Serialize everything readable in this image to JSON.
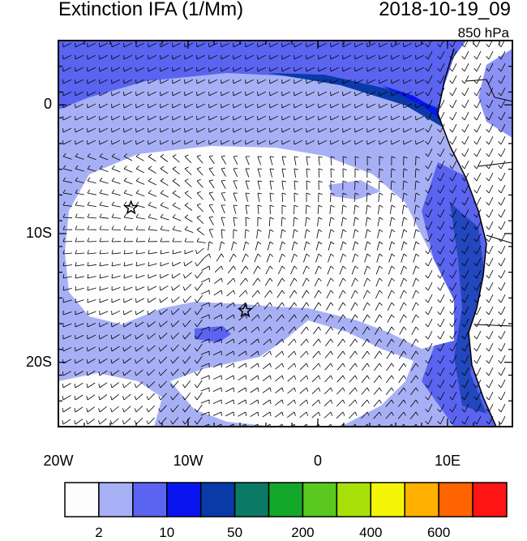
{
  "title_left": "Extinction IFA (1/Mm)",
  "title_right": "2018-10-19_09",
  "level": "850 hPa",
  "lat_ticks": [
    {
      "label": "0",
      "value": 0
    },
    {
      "label": "10S",
      "value": -10
    },
    {
      "label": "20S",
      "value": -20
    }
  ],
  "lon_ticks": [
    {
      "label": "20W",
      "value": -20
    },
    {
      "label": "10W",
      "value": -10
    },
    {
      "label": "0",
      "value": 0
    },
    {
      "label": "10E",
      "value": 10
    }
  ],
  "colorbar": {
    "colors": [
      "#fdfdfd",
      "#a8b0f5",
      "#5a64f0",
      "#0a14f0",
      "#0a3aa8",
      "#0a7a64",
      "#14a82a",
      "#5ac81e",
      "#a8e00a",
      "#f5f50a",
      "#ffb000",
      "#ff6400",
      "#ff1414"
    ],
    "labels": [
      {
        "text": "2",
        "boundary": 1
      },
      {
        "text": "10",
        "boundary": 3
      },
      {
        "text": "50",
        "boundary": 5
      },
      {
        "text": "200",
        "boundary": 7
      },
      {
        "text": "400",
        "boundary": 9
      },
      {
        "text": "600",
        "boundary": 11
      }
    ]
  },
  "markers": [
    {
      "name": "star-marker",
      "lon": -14.4,
      "lat": -8.0
    },
    {
      "name": "star-marker",
      "lon": -5.6,
      "lat": -16.0
    }
  ]
}
